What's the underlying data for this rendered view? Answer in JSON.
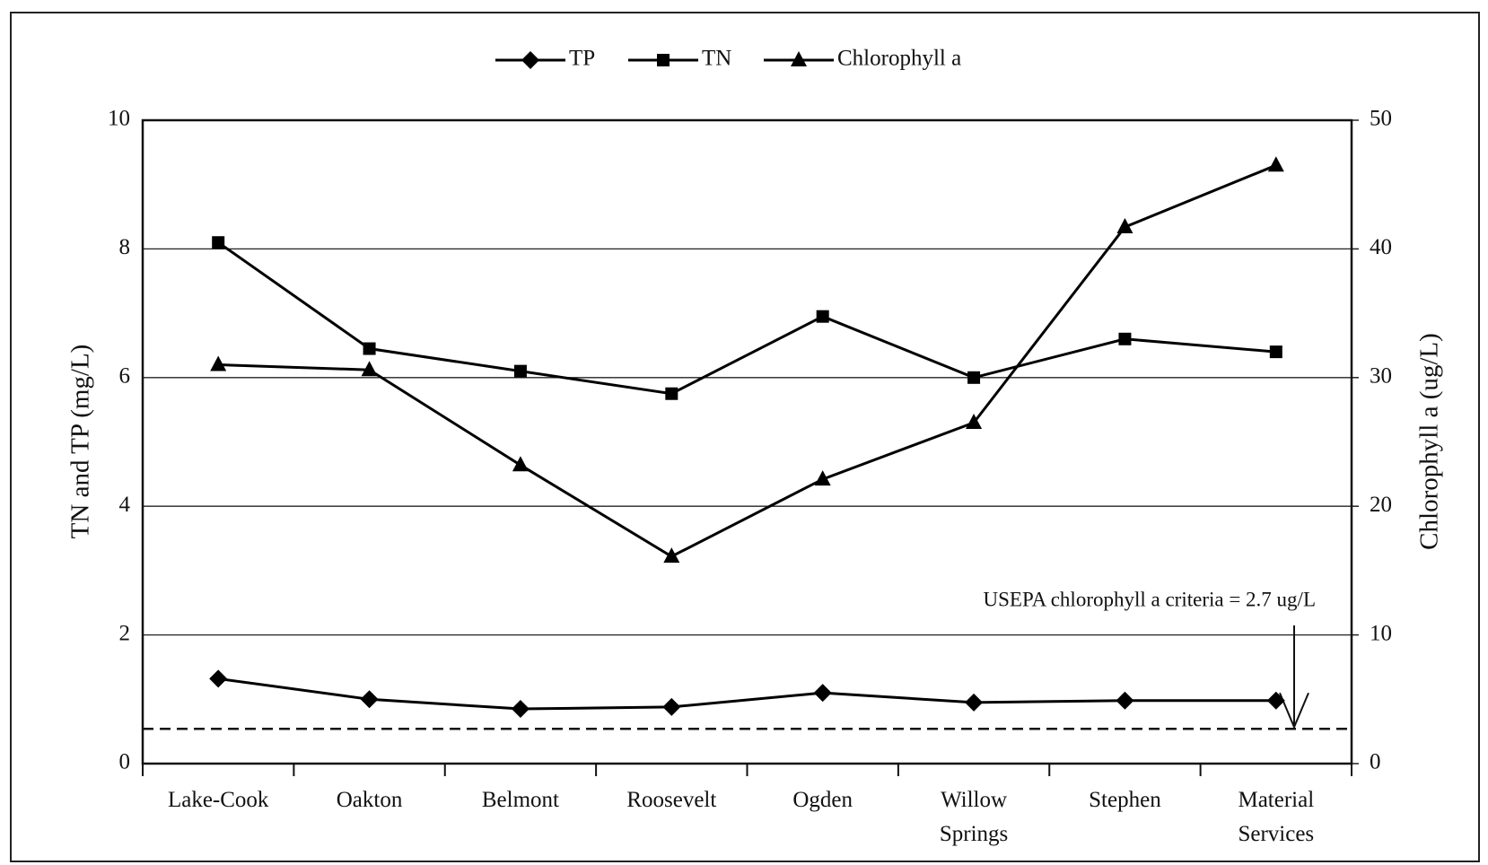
{
  "chart_data": {
    "type": "line",
    "categories": [
      "Lake-Cook",
      "Oakton",
      "Belmont",
      "Roosevelt",
      "Ogden",
      "Willow Springs",
      "Stephen",
      "Material Services"
    ],
    "series": [
      {
        "name": "TP",
        "color": "#000000",
        "marker": "diamond",
        "values": [
          1.32,
          1.0,
          0.85,
          0.88,
          1.1,
          0.95,
          0.98,
          0.98
        ]
      },
      {
        "name": "TN",
        "color": "#000000",
        "marker": "square",
        "values": [
          8.1,
          6.45,
          6.1,
          5.75,
          6.95,
          6.0,
          6.6,
          6.4
        ]
      },
      {
        "name": "Chlorophyll a",
        "color": "#000000",
        "marker": "triangle",
        "axis": "y2",
        "values": [
          31,
          30.6,
          23.2,
          16.1,
          22.1,
          26.5,
          41.7,
          46.5
        ]
      }
    ],
    "y_label": "TN and TP (mg/L)",
    "y2_label": "Chlorophyll a (ug/L)",
    "ylim": [
      0,
      10
    ],
    "yticks": [
      0,
      2,
      4,
      6,
      8,
      10
    ],
    "y2lim": [
      0,
      50
    ],
    "y2ticks": [
      0,
      10,
      20,
      30,
      40,
      50
    ],
    "reference_line": {
      "value": 2.7,
      "axis": "y2",
      "label": "USEPA chlorophyll a criteria = 2.7 ug/L"
    },
    "grid": true,
    "legend": "top"
  }
}
